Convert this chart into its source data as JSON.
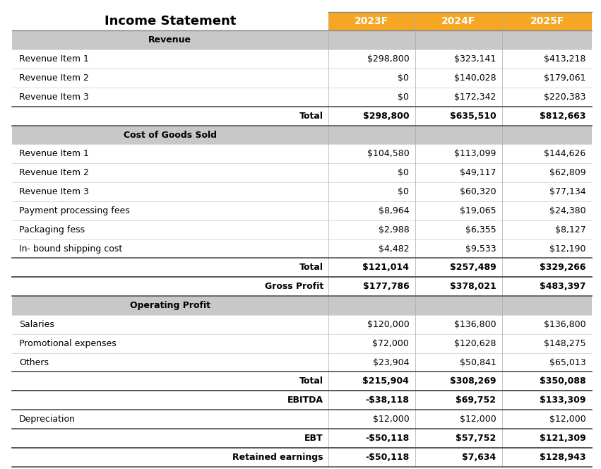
{
  "title": "Income Statement",
  "col_headers": [
    "2023F",
    "2024F",
    "2025F"
  ],
  "header_bg": "#F5A623",
  "header_text": "#FFFFFF",
  "section_bg": "#C8C8C8",
  "rows": [
    {
      "label": "Revenue",
      "values": [
        "",
        "",
        ""
      ],
      "type": "section"
    },
    {
      "label": "Revenue Item 1",
      "values": [
        "$298,800",
        "$323,141",
        "$413,218"
      ],
      "type": "data"
    },
    {
      "label": "Revenue Item 2",
      "values": [
        "$0",
        "$140,028",
        "$179,061"
      ],
      "type": "data"
    },
    {
      "label": "Revenue Item 3",
      "values": [
        "$0",
        "$172,342",
        "$220,383"
      ],
      "type": "data"
    },
    {
      "label": "Total",
      "values": [
        "$298,800",
        "$635,510",
        "$812,663"
      ],
      "type": "total"
    },
    {
      "label": "Cost of Goods Sold",
      "values": [
        "",
        "",
        ""
      ],
      "type": "section"
    },
    {
      "label": "Revenue Item 1",
      "values": [
        "$104,580",
        "$113,099",
        "$144,626"
      ],
      "type": "data"
    },
    {
      "label": "Revenue Item 2",
      "values": [
        "$0",
        "$49,117",
        "$62,809"
      ],
      "type": "data"
    },
    {
      "label": "Revenue Item 3",
      "values": [
        "$0",
        "$60,320",
        "$77,134"
      ],
      "type": "data"
    },
    {
      "label": "Payment processing fees",
      "values": [
        "$8,964",
        "$19,065",
        "$24,380"
      ],
      "type": "data"
    },
    {
      "label": "Packaging fess",
      "values": [
        "$2,988",
        "$6,355",
        "$8,127"
      ],
      "type": "data"
    },
    {
      "label": "In- bound shipping cost",
      "values": [
        "$4,482",
        "$9,533",
        "$12,190"
      ],
      "type": "data"
    },
    {
      "label": "Total",
      "values": [
        "$121,014",
        "$257,489",
        "$329,266"
      ],
      "type": "total"
    },
    {
      "label": "Gross Profit",
      "values": [
        "$177,786",
        "$378,021",
        "$483,397"
      ],
      "type": "total"
    },
    {
      "label": "Operating Profit",
      "values": [
        "",
        "",
        ""
      ],
      "type": "section"
    },
    {
      "label": "Salaries",
      "values": [
        "$120,000",
        "$136,800",
        "$136,800"
      ],
      "type": "data"
    },
    {
      "label": "Promotional expenses",
      "values": [
        "$72,000",
        "$120,628",
        "$148,275"
      ],
      "type": "data"
    },
    {
      "label": "Others",
      "values": [
        "$23,904",
        "$50,841",
        "$65,013"
      ],
      "type": "data"
    },
    {
      "label": "Total",
      "values": [
        "$215,904",
        "$308,269",
        "$350,088"
      ],
      "type": "total"
    },
    {
      "label": "EBITDA",
      "values": [
        "-$38,118",
        "$69,752",
        "$133,309"
      ],
      "type": "total"
    },
    {
      "label": "Depreciation",
      "values": [
        "$12,000",
        "$12,000",
        "$12,000"
      ],
      "type": "data"
    },
    {
      "label": "EBT",
      "values": [
        "-$50,118",
        "$57,752",
        "$121,309"
      ],
      "type": "total"
    },
    {
      "label": "Retained earnings",
      "values": [
        "-$50,118",
        "$7,634",
        "$128,943"
      ],
      "type": "total"
    }
  ],
  "fig_width": 8.51,
  "fig_height": 6.64,
  "bg_color": "#FFFFFF"
}
